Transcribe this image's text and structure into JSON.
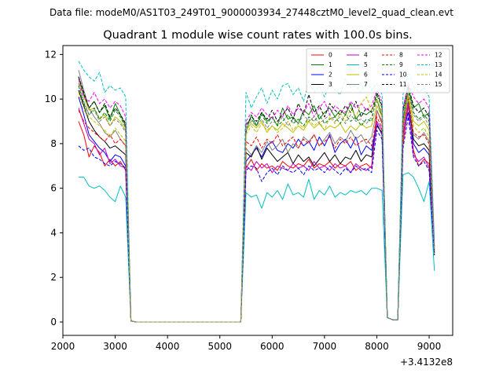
{
  "suptitle": "Data file: modeM0/AS1T03_249T01_9000003934_27448cztM0_level2_quad_clean.evt",
  "chart_data": {
    "type": "line",
    "title": "Quadrant 1 module wise count rates with 100.0s bins.",
    "xlabel": "",
    "ylabel": "",
    "x_offset_label": "+3.4132e8",
    "xlim": [
      2000,
      9450
    ],
    "ylim": [
      -0.6,
      12.4
    ],
    "xticks": [
      2000,
      3000,
      4000,
      5000,
      6000,
      7000,
      8000,
      9000
    ],
    "xtick_labels": [
      "2000",
      "3000",
      "4000",
      "5000",
      "6000",
      "7000",
      "8000",
      "9000"
    ],
    "yticks": [
      0,
      2,
      4,
      6,
      8,
      10,
      12
    ],
    "ytick_labels": [
      "0",
      "2",
      "4",
      "6",
      "8",
      "10",
      "12"
    ],
    "legend_position": "top-right",
    "grid": false,
    "x": [
      2300,
      2400,
      2500,
      2600,
      2700,
      2800,
      2900,
      3000,
      3100,
      3200,
      3300,
      3400,
      3500,
      3600,
      3700,
      3800,
      3900,
      4000,
      4100,
      4200,
      4300,
      4400,
      4500,
      4600,
      4700,
      4800,
      4900,
      5000,
      5100,
      5200,
      5300,
      5400,
      5500,
      5600,
      5700,
      5800,
      5900,
      6000,
      6100,
      6200,
      6300,
      6400,
      6500,
      6600,
      6700,
      6800,
      6900,
      7000,
      7100,
      7200,
      7300,
      7400,
      7500,
      7600,
      7700,
      7800,
      7900,
      8000,
      8100,
      8200,
      8300,
      8400,
      8500,
      8600,
      8700,
      8800,
      8900,
      9000,
      9100
    ],
    "series": [
      {
        "name": "0",
        "color": "#ff0000",
        "dash": "solid",
        "values": [
          9.0,
          8.4,
          7.4,
          7.9,
          7.6,
          7.0,
          7.3,
          7.0,
          7.2,
          6.8,
          0.05,
          0,
          0,
          0,
          0,
          0,
          0,
          0,
          0,
          0,
          0,
          0,
          0,
          0,
          0,
          0,
          0,
          0,
          0,
          0,
          0,
          0,
          6.9,
          7.3,
          6.8,
          7.1,
          6.9,
          7.0,
          6.8,
          7.2,
          7.0,
          6.9,
          7.1,
          7.0,
          7.3,
          6.9,
          7.1,
          7.0,
          7.2,
          6.9,
          7.1,
          7.0,
          7.2,
          6.8,
          7.0,
          7.1,
          6.9,
          9.5,
          8.9,
          0.2,
          0.1,
          0.1,
          8.0,
          9.7,
          7.7,
          7.0,
          7.3,
          7.1,
          3.2
        ]
      },
      {
        "name": "1",
        "color": "#008000",
        "dash": "solid",
        "values": [
          11.0,
          10.2,
          9.6,
          9.9,
          9.4,
          9.7,
          9.1,
          9.8,
          9.3,
          8.8,
          0.05,
          0,
          0,
          0,
          0,
          0,
          0,
          0,
          0,
          0,
          0,
          0,
          0,
          0,
          0,
          0,
          0,
          0,
          0,
          0,
          0,
          0,
          8.5,
          9.3,
          8.8,
          9.4,
          9.0,
          9.2,
          8.8,
          9.6,
          9.1,
          9.2,
          8.9,
          9.5,
          9.3,
          9.7,
          9.1,
          9.4,
          9.6,
          9.2,
          9.5,
          9.3,
          9.8,
          9.1,
          9.4,
          9.3,
          9.5,
          10.0,
          9.2,
          0.2,
          0.1,
          0.1,
          9.0,
          10.5,
          9.6,
          9.8,
          9.2,
          9.4,
          3.0
        ]
      },
      {
        "name": "2",
        "color": "#0000ff",
        "dash": "solid",
        "values": [
          10.1,
          9.3,
          8.4,
          8.1,
          7.8,
          7.6,
          7.2,
          7.5,
          7.4,
          7.0,
          0.05,
          0,
          0,
          0,
          0,
          0,
          0,
          0,
          0,
          0,
          0,
          0,
          0,
          0,
          0,
          0,
          0,
          0,
          0,
          0,
          0,
          0,
          7.2,
          7.5,
          7.8,
          7.4,
          7.9,
          8.1,
          7.7,
          7.6,
          8.0,
          7.8,
          8.2,
          7.9,
          8.1,
          7.7,
          8.3,
          7.9,
          8.4,
          7.6,
          8.0,
          8.2,
          7.8,
          8.3,
          7.5,
          7.9,
          7.7,
          8.9,
          8.4,
          0.2,
          0.1,
          0.1,
          8.5,
          9.4,
          8.0,
          7.6,
          7.8,
          7.5,
          3.1
        ]
      },
      {
        "name": "3",
        "color": "#000000",
        "dash": "solid",
        "values": [
          10.4,
          9.7,
          9.0,
          8.6,
          8.3,
          8.1,
          7.8,
          7.9,
          7.7,
          7.5,
          0.05,
          0,
          0,
          0,
          0,
          0,
          0,
          0,
          0,
          0,
          0,
          0,
          0,
          0,
          0,
          0,
          0,
          0,
          0,
          0,
          0,
          0,
          7.6,
          7.4,
          7.9,
          7.3,
          7.8,
          7.5,
          7.2,
          7.4,
          7.6,
          7.1,
          7.5,
          7.2,
          7.4,
          7.0,
          7.3,
          7.6,
          7.2,
          7.5,
          7.1,
          7.4,
          7.3,
          7.7,
          7.2,
          7.5,
          7.4,
          8.8,
          8.5,
          0.2,
          0.1,
          0.1,
          8.9,
          9.9,
          8.2,
          7.9,
          8.0,
          7.7,
          3.3
        ]
      },
      {
        "name": "4",
        "color": "#bf00bf",
        "dash": "solid",
        "values": [
          9.6,
          8.9,
          8.2,
          8.0,
          7.5,
          7.8,
          7.1,
          7.3,
          7.0,
          6.9,
          0.05,
          0,
          0,
          0,
          0,
          0,
          0,
          0,
          0,
          0,
          0,
          0,
          0,
          0,
          0,
          0,
          0,
          0,
          0,
          0,
          0,
          0,
          7.0,
          6.8,
          7.2,
          6.9,
          7.1,
          6.7,
          7.0,
          6.9,
          6.8,
          7.1,
          6.9,
          7.0,
          6.8,
          7.2,
          6.9,
          7.0,
          6.8,
          7.1,
          6.9,
          7.0,
          6.7,
          7.1,
          6.9,
          6.8,
          7.0,
          9.0,
          8.6,
          0.2,
          0.1,
          0.1,
          8.3,
          9.8,
          7.5,
          7.2,
          7.4,
          6.9,
          3.0
        ]
      },
      {
        "name": "5",
        "color": "#00bfbf",
        "dash": "solid",
        "values": [
          6.5,
          6.5,
          6.1,
          6.0,
          6.1,
          5.9,
          5.6,
          5.4,
          6.1,
          5.6,
          0.05,
          0,
          0,
          0,
          0,
          0,
          0,
          0,
          0,
          0,
          0,
          0,
          0,
          0,
          0,
          0,
          0,
          0,
          0,
          0,
          0,
          0,
          5.8,
          5.6,
          5.7,
          5.1,
          5.8,
          5.6,
          5.9,
          5.5,
          6.2,
          5.7,
          5.8,
          5.6,
          6.4,
          5.5,
          5.9,
          5.7,
          6.1,
          5.6,
          5.8,
          5.7,
          5.9,
          5.8,
          5.9,
          5.7,
          6.0,
          6.0,
          5.9,
          0.2,
          0.1,
          0.1,
          6.6,
          6.7,
          6.5,
          6.0,
          5.4,
          6.3,
          2.3
        ]
      },
      {
        "name": "6",
        "color": "#bfbf00",
        "dash": "solid",
        "values": [
          10.8,
          10.1,
          9.5,
          9.6,
          9.1,
          9.3,
          8.8,
          9.2,
          9.0,
          8.6,
          0.05,
          0,
          0,
          0,
          0,
          0,
          0,
          0,
          0,
          0,
          0,
          0,
          0,
          0,
          0,
          0,
          0,
          0,
          0,
          0,
          0,
          0,
          8.6,
          8.9,
          8.7,
          9.0,
          8.5,
          8.8,
          8.6,
          8.9,
          8.7,
          8.5,
          8.8,
          8.6,
          9.0,
          8.7,
          8.9,
          8.6,
          8.8,
          8.7,
          8.9,
          8.5,
          8.8,
          8.6,
          8.9,
          8.7,
          8.8,
          9.7,
          9.2,
          0.2,
          0.1,
          0.1,
          8.8,
          10.2,
          9.0,
          8.8,
          9.0,
          8.6,
          3.0
        ]
      },
      {
        "name": "7",
        "color": "#808080",
        "dash": "solid",
        "values": [
          11.3,
          10.4,
          9.6,
          9.2,
          8.9,
          8.5,
          8.3,
          8.6,
          8.2,
          7.9,
          0.05,
          0,
          0,
          0,
          0,
          0,
          0,
          0,
          0,
          0,
          0,
          0,
          0,
          0,
          0,
          0,
          0,
          0,
          0,
          0,
          0,
          0,
          7.8,
          7.5,
          7.9,
          7.6,
          8.1,
          7.7,
          7.9,
          8.2,
          7.6,
          8.0,
          7.8,
          8.3,
          8.1,
          8.4,
          7.9,
          8.2,
          8.5,
          8.0,
          8.3,
          8.1,
          8.6,
          8.2,
          8.4,
          8.0,
          8.3,
          9.5,
          9.0,
          0.2,
          0.1,
          0.1,
          8.6,
          10.0,
          8.4,
          8.2,
          8.5,
          8.1,
          3.4
        ]
      },
      {
        "name": "8",
        "color": "#ff0000",
        "dash": "dash",
        "values": [
          9.5,
          9.0,
          8.7,
          8.5,
          8.3,
          8.1,
          8.4,
          8.0,
          8.2,
          7.9,
          0.05,
          0,
          0,
          0,
          0,
          0,
          0,
          0,
          0,
          0,
          0,
          0,
          0,
          0,
          0,
          0,
          0,
          0,
          0,
          0,
          0,
          0,
          8.1,
          7.9,
          8.3,
          7.8,
          8.2,
          8.0,
          8.4,
          7.9,
          8.1,
          8.3,
          7.8,
          8.2,
          8.0,
          8.4,
          7.9,
          8.1,
          8.3,
          7.8,
          8.2,
          8.0,
          8.3,
          7.9,
          8.1,
          8.2,
          7.9,
          9.2,
          8.7,
          0.2,
          0.1,
          0.1,
          8.7,
          10.1,
          8.5,
          8.3,
          8.4,
          8.0,
          3.2
        ]
      },
      {
        "name": "9",
        "color": "#008000",
        "dash": "dash",
        "values": [
          10.6,
          9.8,
          9.3,
          9.6,
          9.1,
          9.4,
          9.0,
          9.5,
          9.2,
          8.7,
          0.05,
          0,
          0,
          0,
          0,
          0,
          0,
          0,
          0,
          0,
          0,
          0,
          0,
          0,
          0,
          0,
          0,
          0,
          0,
          0,
          0,
          0,
          8.9,
          9.1,
          8.8,
          9.3,
          8.9,
          9.2,
          8.8,
          9.0,
          9.3,
          8.9,
          9.1,
          8.8,
          9.2,
          9.0,
          9.3,
          8.9,
          9.1,
          9.2,
          8.9,
          9.3,
          9.0,
          9.2,
          8.8,
          9.1,
          9.0,
          10.2,
          9.6,
          0.2,
          0.1,
          0.1,
          9.4,
          10.4,
          9.4,
          9.1,
          9.3,
          9.0,
          3.1
        ]
      },
      {
        "name": "10",
        "color": "#0000ff",
        "dash": "dash",
        "values": [
          7.9,
          7.7,
          7.8,
          7.4,
          7.3,
          7.1,
          7.0,
          7.2,
          7.1,
          6.9,
          0.05,
          0,
          0,
          0,
          0,
          0,
          0,
          0,
          0,
          0,
          0,
          0,
          0,
          0,
          0,
          0,
          0,
          0,
          0,
          0,
          0,
          0,
          6.8,
          7.0,
          6.9,
          6.3,
          6.7,
          6.9,
          6.6,
          7.0,
          6.8,
          6.7,
          6.9,
          6.6,
          7.0,
          6.8,
          6.9,
          6.7,
          7.0,
          6.8,
          6.6,
          6.9,
          6.7,
          7.0,
          6.8,
          6.9,
          6.7,
          8.6,
          8.2,
          0.2,
          0.1,
          0.1,
          7.8,
          9.2,
          7.4,
          7.0,
          7.2,
          6.8,
          3.0
        ]
      },
      {
        "name": "11",
        "color": "#000000",
        "dash": "dash",
        "values": [
          11.0,
          10.3,
          9.6,
          9.9,
          9.4,
          9.8,
          9.2,
          9.6,
          9.3,
          8.9,
          0.05,
          0,
          0,
          0,
          0,
          0,
          0,
          0,
          0,
          0,
          0,
          0,
          0,
          0,
          0,
          0,
          0,
          0,
          0,
          0,
          0,
          0,
          8.8,
          9.2,
          9.0,
          9.4,
          9.1,
          9.5,
          9.0,
          9.3,
          9.6,
          9.1,
          9.8,
          9.3,
          10.2,
          9.4,
          9.7,
          9.2,
          9.8,
          9.5,
          9.3,
          9.7,
          9.4,
          9.9,
          9.2,
          9.6,
          9.4,
          10.3,
          9.7,
          0.2,
          0.1,
          0.1,
          9.5,
          10.6,
          9.7,
          9.4,
          9.6,
          9.2,
          3.4
        ]
      },
      {
        "name": "12",
        "color": "#ff00ff",
        "dash": "dash",
        "values": [
          10.9,
          10.1,
          9.9,
          10.3,
          9.8,
          10.0,
          9.6,
          9.9,
          9.7,
          9.2,
          0.05,
          0,
          0,
          0,
          0,
          0,
          0,
          0,
          0,
          0,
          0,
          0,
          0,
          0,
          0,
          0,
          0,
          0,
          0,
          0,
          0,
          0,
          9.0,
          9.4,
          9.2,
          9.6,
          9.3,
          9.1,
          9.5,
          9.2,
          9.7,
          9.3,
          9.6,
          9.4,
          9.8,
          9.2,
          9.6,
          9.9,
          9.3,
          9.7,
          9.5,
          9.4,
          9.9,
          9.6,
          9.8,
          9.5,
          9.7,
          10.4,
          9.9,
          0.2,
          0.1,
          0.1,
          9.6,
          10.7,
          10.1,
          9.8,
          10.0,
          9.6,
          3.5
        ]
      },
      {
        "name": "13",
        "color": "#00bfbf",
        "dash": "dash",
        "values": [
          11.7,
          11.3,
          11.0,
          10.8,
          11.2,
          10.3,
          10.6,
          10.4,
          10.5,
          10.1,
          0.05,
          0,
          0,
          0,
          0,
          0,
          0,
          0,
          0,
          0,
          0,
          0,
          0,
          0,
          0,
          0,
          0,
          0,
          0,
          0,
          0,
          0,
          10.3,
          9.6,
          10.1,
          10.5,
          9.8,
          10.4,
          10.0,
          10.6,
          10.7,
          10.2,
          10.5,
          9.9,
          10.8,
          10.3,
          10.6,
          10.1,
          10.7,
          10.4,
          10.2,
          10.9,
          10.5,
          10.6,
          10.3,
          10.8,
          10.4,
          10.7,
          10.2,
          0.2,
          0.1,
          0.1,
          10.2,
          11.2,
          10.6,
          10.3,
          10.5,
          10.1,
          3.6
        ]
      },
      {
        "name": "14",
        "color": "#bfbf00",
        "dash": "dash",
        "values": [
          10.3,
          9.5,
          9.2,
          9.0,
          8.8,
          8.6,
          8.3,
          8.7,
          8.4,
          8.1,
          0.05,
          0,
          0,
          0,
          0,
          0,
          0,
          0,
          0,
          0,
          0,
          0,
          0,
          0,
          0,
          0,
          0,
          0,
          0,
          0,
          0,
          0,
          8.4,
          8.8,
          8.5,
          8.9,
          8.6,
          8.8,
          8.5,
          8.7,
          9.0,
          8.6,
          8.9,
          8.7,
          9.1,
          8.8,
          9.0,
          8.6,
          9.2,
          8.9,
          9.4,
          9.0,
          9.6,
          9.2,
          9.8,
          10.1,
          9.5,
          10.0,
          9.4,
          0.2,
          0.1,
          0.1,
          8.9,
          10.1,
          8.8,
          8.5,
          8.7,
          8.3,
          3.2
        ]
      },
      {
        "name": "15",
        "color": "#808080",
        "dash": "dash",
        "values": [
          10.7,
          9.9,
          9.3,
          9.5,
          9.0,
          9.2,
          8.8,
          9.1,
          8.9,
          8.5,
          0.05,
          0,
          0,
          0,
          0,
          0,
          0,
          0,
          0,
          0,
          0,
          0,
          0,
          0,
          0,
          0,
          0,
          0,
          0,
          0,
          0,
          0,
          8.7,
          9.0,
          8.8,
          9.1,
          8.7,
          9.0,
          8.9,
          9.2,
          8.8,
          9.1,
          8.9,
          9.3,
          9.0,
          9.2,
          8.9,
          9.1,
          9.3,
          9.0,
          9.2,
          8.9,
          9.3,
          9.0,
          9.1,
          8.9,
          9.2,
          9.9,
          9.3,
          0.2,
          0.1,
          0.1,
          9.2,
          10.3,
          9.3,
          9.0,
          9.2,
          8.8,
          3.3
        ]
      }
    ]
  }
}
